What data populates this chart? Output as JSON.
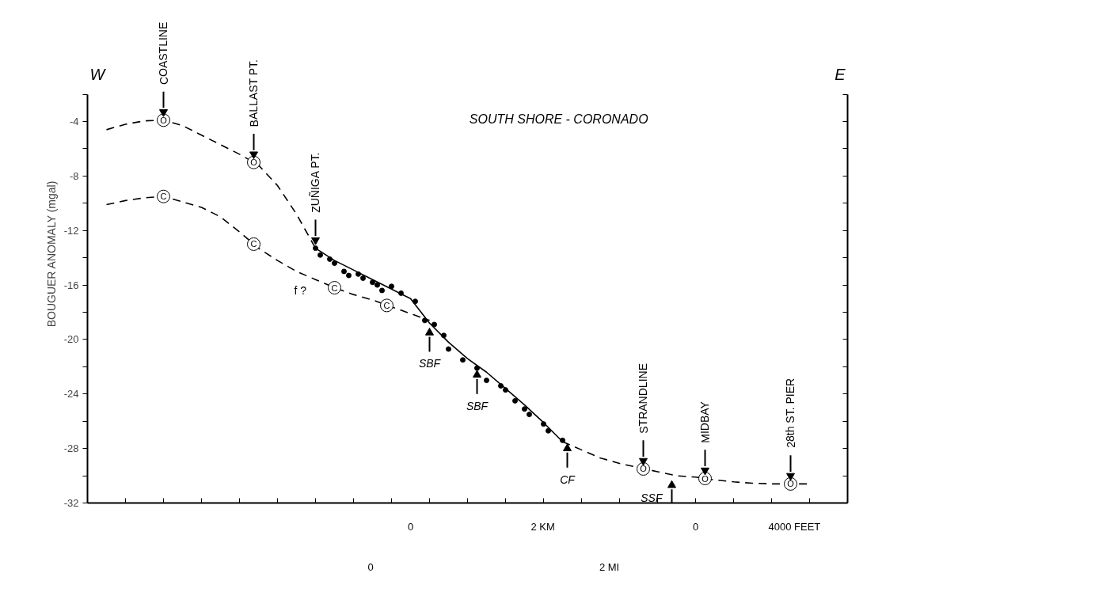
{
  "chart_data": {
    "type": "line",
    "title": "SOUTH SHORE - CORONADO",
    "ylabel": "BOUGUER ANOMALY (mgal)",
    "categories": [
      null,
      null,
      null,
      null,
      null,
      null,
      null,
      null,
      null,
      null,
      null,
      null,
      null,
      null,
      null,
      null,
      null,
      null,
      null,
      null,
      null,
      null,
      null,
      null,
      null,
      null,
      null,
      null,
      null,
      null,
      null,
      null,
      null,
      null,
      null,
      null,
      null,
      null,
      null,
      null,
      null,
      null,
      null,
      null,
      null,
      null,
      null,
      null,
      null,
      null,
      null,
      null,
      null,
      null,
      null,
      null,
      null,
      null,
      null,
      null,
      null,
      null,
      null,
      null,
      null,
      null,
      null,
      null,
      null,
      null,
      null,
      null,
      null,
      null,
      null,
      null,
      null,
      null,
      null,
      null,
      null,
      null,
      null,
      null,
      null,
      null,
      null,
      null,
      null,
      null,
      null,
      null,
      null,
      null,
      null,
      null,
      null,
      null,
      null,
      null,
      null,
      null,
      null,
      null,
      null,
      null,
      null,
      null,
      null,
      null,
      null,
      null,
      null,
      null,
      null,
      null,
      null,
      null,
      null,
      null,
      null,
      null,
      null,
      null,
      null,
      null,
      null,
      null,
      null,
      null,
      null,
      null,
      null,
      null,
      null,
      null,
      null,
      null,
      null,
      null,
      null,
      null,
      null,
      null,
      null,
      null,
      null,
      null,
      null,
      null,
      null,
      null,
      null,
      null,
      null,
      null,
      null,
      null,
      null,
      null,
      null
    ],
    "ylim": [
      -32,
      -2
    ],
    "yticks": [
      -32,
      {
        "value": -30,
        "label": null
      },
      -28,
      {
        "value": -26,
        "label": null
      },
      -24,
      {
        "value": -22,
        "label": null
      },
      -20,
      {
        "value": -18,
        "label": null
      },
      -16,
      {
        "value": -14,
        "label": null
      },
      -12,
      {
        "value": -10,
        "label": null
      },
      -8,
      {
        "value": -6,
        "label": null
      },
      -4,
      {
        "value": -2,
        "label": null
      }
    ],
    "tick_labels": "y",
    "series": [
      {
        "line_style": "dashed",
        "color": "#000000",
        "values": [
          null,
          null,
          null,
          null,
          -4.6,
          null,
          null,
          null,
          -4.2,
          null,
          null,
          null,
          -3.95,
          null,
          null,
          null,
          -3.9,
          null,
          null,
          null,
          -4.3,
          null,
          null,
          null,
          -5.0,
          null,
          null,
          null,
          -5.7,
          null,
          null,
          null,
          -6.4,
          null,
          null,
          null,
          -7.2,
          null,
          null,
          null,
          -8.7,
          null,
          null,
          null,
          -10.8,
          null,
          null,
          null,
          -13.3,
          null,
          null,
          null,
          null,
          null,
          null,
          null,
          null,
          null,
          null,
          null,
          null,
          null,
          null,
          null,
          null,
          null,
          null,
          null,
          null,
          null,
          null,
          null,
          null,
          null,
          null,
          null,
          null,
          null,
          null,
          null,
          null,
          null,
          null,
          null,
          null,
          null,
          null,
          null,
          null,
          null,
          null,
          null,
          null,
          null,
          null,
          null,
          null,
          null,
          null,
          null,
          null,
          null,
          null,
          null,
          null,
          null,
          null,
          null,
          null,
          null,
          null,
          null,
          null,
          null,
          null,
          null,
          null,
          null,
          null,
          null,
          null,
          null,
          null,
          null,
          null,
          null,
          null,
          null,
          null,
          null,
          null,
          null,
          null,
          null,
          null,
          null,
          null,
          null,
          null,
          null,
          null,
          null,
          null,
          null,
          null,
          null,
          null,
          null,
          null,
          null,
          null,
          null,
          null,
          null,
          null,
          null,
          null,
          null,
          null,
          null,
          null
        ]
      },
      {
        "line_style": "solid",
        "color": "#000000",
        "values": [
          null,
          null,
          null,
          null,
          null,
          null,
          null,
          null,
          null,
          null,
          null,
          null,
          null,
          null,
          null,
          null,
          null,
          null,
          null,
          null,
          null,
          null,
          null,
          null,
          null,
          null,
          null,
          null,
          null,
          null,
          null,
          null,
          null,
          null,
          null,
          null,
          null,
          null,
          null,
          null,
          null,
          null,
          null,
          null,
          null,
          null,
          null,
          null,
          -13.3,
          null,
          null,
          null,
          -14.2,
          null,
          null,
          null,
          -14.9,
          null,
          null,
          null,
          -15.6,
          null,
          null,
          null,
          -16.3,
          null,
          null,
          null,
          -17.0,
          null,
          null,
          null,
          -18.8,
          null,
          null,
          null,
          -20.2,
          null,
          null,
          null,
          -21.4,
          null,
          null,
          null,
          -22.4,
          null,
          null,
          null,
          -23.6,
          null,
          null,
          null,
          -24.8,
          null,
          null,
          null,
          -26.1,
          null,
          null,
          null,
          -27.5,
          null,
          null,
          null,
          null,
          null,
          null,
          null,
          null,
          null,
          null,
          null,
          null,
          null,
          null,
          null,
          null,
          null,
          null,
          null,
          null,
          null,
          null,
          null,
          null,
          null,
          null,
          null,
          null,
          null,
          null,
          null,
          null,
          null,
          null,
          null,
          null,
          null,
          null,
          null,
          null,
          null,
          null,
          null,
          null,
          null,
          null,
          null,
          null,
          null,
          null,
          null,
          null,
          null,
          null,
          null,
          null,
          null,
          null,
          null,
          null
        ]
      },
      {
        "line_style": "dashed",
        "color": "#000000",
        "values": [
          null,
          null,
          null,
          null,
          null,
          null,
          null,
          null,
          null,
          null,
          null,
          null,
          null,
          null,
          null,
          null,
          null,
          null,
          null,
          null,
          null,
          null,
          null,
          null,
          null,
          null,
          null,
          null,
          null,
          null,
          null,
          null,
          null,
          null,
          null,
          null,
          null,
          null,
          null,
          null,
          null,
          null,
          null,
          null,
          null,
          null,
          null,
          null,
          null,
          null,
          null,
          null,
          null,
          null,
          null,
          null,
          null,
          null,
          null,
          null,
          null,
          null,
          null,
          null,
          null,
          null,
          null,
          null,
          null,
          null,
          null,
          null,
          null,
          null,
          null,
          null,
          null,
          null,
          null,
          null,
          null,
          null,
          null,
          null,
          null,
          null,
          null,
          null,
          null,
          null,
          null,
          null,
          null,
          null,
          null,
          null,
          null,
          null,
          null,
          null,
          -27.5,
          null,
          null,
          null,
          -28.1,
          null,
          null,
          null,
          -28.7,
          null,
          null,
          null,
          -29.1,
          null,
          null,
          null,
          -29.4,
          null,
          null,
          null,
          -29.7,
          null,
          null,
          null,
          -30.0,
          null,
          null,
          null,
          -30.1,
          null,
          null,
          null,
          -30.3,
          null,
          null,
          null,
          -30.45,
          null,
          null,
          null,
          -30.55,
          null,
          null,
          null,
          -30.6,
          null,
          null,
          null,
          -30.6,
          null,
          null,
          null,
          -30.6,
          null,
          null,
          null,
          null,
          null,
          null,
          null,
          null
        ]
      },
      {
        "line_style": "dashed",
        "color": "#000000",
        "values": [
          null,
          null,
          null,
          null,
          -10.1,
          null,
          null,
          null,
          -9.8,
          null,
          null,
          null,
          -9.6,
          null,
          null,
          null,
          -9.5,
          null,
          null,
          null,
          -9.9,
          null,
          null,
          null,
          -10.3,
          null,
          null,
          null,
          -11.0,
          null,
          null,
          null,
          -12.1,
          null,
          null,
          null,
          -13.3,
          null,
          null,
          null,
          -14.2,
          null,
          null,
          null,
          -15.0,
          null,
          null,
          null,
          -15.6,
          null,
          null,
          null,
          -16.2,
          null,
          null,
          null,
          -16.7,
          null,
          null,
          null,
          -17.1,
          null,
          null,
          null,
          -17.6,
          null,
          null,
          null,
          -18.1,
          null,
          null,
          null,
          -18.6,
          null,
          null,
          null,
          null,
          null,
          null,
          null,
          null,
          null,
          null,
          null,
          null,
          null,
          null,
          null,
          null,
          null,
          null,
          null,
          null,
          null,
          null,
          null,
          null,
          null,
          null,
          null,
          null,
          null,
          null,
          null,
          null,
          null,
          null,
          null,
          null,
          null,
          null,
          null,
          null,
          null,
          null,
          null,
          null,
          null,
          null,
          null,
          null,
          null,
          null,
          null,
          null,
          null,
          null,
          null,
          null,
          null,
          null,
          null,
          null,
          null,
          null,
          null,
          null,
          null,
          null,
          null,
          null,
          null,
          null,
          null,
          null,
          null,
          null,
          null,
          null,
          null,
          null,
          null,
          null,
          null,
          null,
          null,
          null,
          null,
          null,
          null,
          null
        ]
      },
      {
        "type": "scatter",
        "marker": "circle",
        "color": "#000000",
        "values": [
          null,
          null,
          null,
          null,
          null,
          null,
          null,
          null,
          null,
          null,
          null,
          null,
          null,
          null,
          null,
          null,
          null,
          null,
          null,
          null,
          null,
          null,
          null,
          null,
          null,
          null,
          null,
          null,
          null,
          null,
          null,
          null,
          null,
          null,
          null,
          null,
          null,
          null,
          null,
          null,
          null,
          null,
          null,
          null,
          null,
          null,
          null,
          null,
          -13.3,
          -13.8,
          null,
          -14.1,
          -14.4,
          null,
          -15.0,
          -15.3,
          null,
          -15.2,
          -15.5,
          null,
          -15.8,
          -16.0,
          -16.4,
          null,
          -16.1,
          null,
          -16.6,
          null,
          null,
          -17.2,
          null,
          -18.6,
          null,
          -18.9,
          null,
          -19.7,
          -20.7,
          null,
          null,
          -21.5,
          null,
          null,
          -22.1,
          null,
          -23.0,
          null,
          null,
          -23.4,
          -23.7,
          null,
          -24.5,
          null,
          -25.1,
          -25.5,
          null,
          null,
          -26.2,
          -26.7,
          null,
          null,
          -27.4,
          null,
          null,
          null,
          null,
          null,
          null,
          null,
          null,
          null,
          null,
          null,
          null,
          null,
          null,
          null,
          null,
          null,
          null,
          null,
          null,
          null,
          null,
          null,
          null,
          null,
          null,
          null,
          null,
          null,
          null,
          null,
          null,
          null,
          null,
          null,
          null,
          null,
          null,
          null,
          null,
          null,
          null,
          null,
          null,
          null,
          null,
          null,
          null,
          null,
          null,
          null,
          null,
          null,
          null,
          null,
          null,
          null,
          null,
          null,
          null
        ]
      },
      {
        "type": "scatter",
        "marker": "circle",
        "color": "#000000",
        "values": [
          null,
          null,
          null,
          null,
          null,
          null,
          null,
          null,
          null,
          null,
          null,
          null,
          null,
          null,
          null,
          null,
          -3.9,
          null,
          null,
          null,
          null,
          null,
          null,
          null,
          null,
          null,
          null,
          null,
          null,
          null,
          null,
          null,
          null,
          null,
          null,
          -7.0,
          null,
          null,
          null,
          null,
          null,
          null,
          null,
          null,
          null,
          null,
          null,
          null,
          null,
          null,
          null,
          null,
          null,
          null,
          null,
          null,
          null,
          null,
          null,
          null,
          null,
          null,
          null,
          null,
          null,
          null,
          null,
          null,
          null,
          null,
          null,
          null,
          null,
          null,
          null,
          null,
          null,
          null,
          null,
          null,
          null,
          null,
          null,
          null,
          null,
          null,
          null,
          null,
          null,
          null,
          null,
          null,
          null,
          null,
          null,
          null,
          null,
          null,
          null,
          null,
          null,
          null,
          null,
          null,
          null,
          null,
          null,
          null,
          null,
          null,
          null,
          null,
          null,
          null,
          null,
          null,
          null,
          -29.5,
          null,
          null,
          null,
          null,
          null,
          null,
          null,
          null,
          null,
          null,
          null,
          null,
          -30.2,
          null,
          null,
          null,
          null,
          null,
          null,
          null,
          null,
          null,
          null,
          null,
          null,
          null,
          null,
          null,
          null,
          null,
          -30.6,
          null,
          null,
          null,
          null,
          null,
          null,
          null,
          null,
          null,
          null,
          null,
          null
        ],
        "value_labels": [
          null,
          null,
          null,
          null,
          null,
          null,
          null,
          null,
          null,
          null,
          null,
          null,
          null,
          null,
          null,
          null,
          "O",
          null,
          null,
          null,
          null,
          null,
          null,
          null,
          null,
          null,
          null,
          null,
          null,
          null,
          null,
          null,
          null,
          null,
          null,
          "O",
          null,
          null,
          null,
          null,
          null,
          null,
          null,
          null,
          null,
          null,
          null,
          null,
          null,
          null,
          null,
          null,
          null,
          null,
          null,
          null,
          null,
          null,
          null,
          null,
          null,
          null,
          null,
          null,
          null,
          null,
          null,
          null,
          null,
          null,
          null,
          null,
          null,
          null,
          null,
          null,
          null,
          null,
          null,
          null,
          null,
          null,
          null,
          null,
          null,
          null,
          null,
          null,
          null,
          null,
          null,
          null,
          null,
          null,
          null,
          null,
          null,
          null,
          null,
          null,
          null,
          null,
          null,
          null,
          null,
          null,
          null,
          null,
          null,
          null,
          null,
          null,
          null,
          null,
          null,
          null,
          null,
          "O",
          null,
          null,
          null,
          null,
          null,
          null,
          null,
          null,
          null,
          null,
          null,
          null,
          "O",
          null,
          null,
          null,
          null,
          null,
          null,
          null,
          null,
          null,
          null,
          null,
          null,
          null,
          null,
          null,
          null,
          null,
          "O",
          null,
          null,
          null,
          null,
          null,
          null,
          null,
          null,
          null,
          null,
          null,
          null
        ]
      },
      {
        "type": "scatter",
        "marker": "circle",
        "color": "#000000",
        "values": [
          null,
          null,
          null,
          null,
          null,
          null,
          null,
          null,
          null,
          null,
          null,
          null,
          null,
          null,
          null,
          null,
          -9.5,
          null,
          null,
          null,
          null,
          null,
          null,
          null,
          null,
          null,
          null,
          null,
          null,
          null,
          null,
          null,
          null,
          null,
          null,
          -13.0,
          null,
          null,
          null,
          null,
          null,
          null,
          null,
          null,
          null,
          null,
          null,
          null,
          null,
          null,
          null,
          null,
          -16.2,
          null,
          null,
          null,
          null,
          null,
          null,
          null,
          null,
          null,
          null,
          -17.5,
          null,
          null,
          null,
          null,
          null,
          null,
          null,
          null,
          null,
          null,
          null,
          null,
          null,
          null,
          null,
          null,
          null,
          null,
          null,
          null,
          null,
          null,
          null,
          null,
          null,
          null,
          null,
          null,
          null,
          null,
          null,
          null,
          null,
          null,
          null,
          null,
          null,
          null,
          null,
          null,
          null,
          null,
          null,
          null,
          null,
          null,
          null,
          null,
          null,
          null,
          null,
          null,
          null,
          null,
          null,
          null,
          null,
          null,
          null,
          null,
          null,
          null,
          null,
          null,
          null,
          null,
          null,
          null,
          null,
          null,
          null,
          null,
          null,
          null,
          null,
          null,
          null,
          null,
          null,
          null,
          null,
          null,
          null,
          null,
          null,
          null,
          null,
          null,
          null,
          null,
          null,
          null,
          null,
          null,
          null,
          null,
          null
        ],
        "value_labels": [
          null,
          null,
          null,
          null,
          null,
          null,
          null,
          null,
          null,
          null,
          null,
          null,
          null,
          null,
          null,
          null,
          "C",
          null,
          null,
          null,
          null,
          null,
          null,
          null,
          null,
          null,
          null,
          null,
          null,
          null,
          null,
          null,
          null,
          null,
          null,
          "C",
          null,
          null,
          null,
          null,
          null,
          null,
          null,
          null,
          null,
          null,
          null,
          null,
          null,
          null,
          null,
          null,
          "C",
          null,
          null,
          null,
          null,
          null,
          null,
          null,
          null,
          null,
          null,
          "C",
          null,
          null,
          null,
          null,
          null,
          null,
          null,
          null,
          null,
          null,
          null,
          null,
          null,
          null,
          null,
          null,
          null,
          null,
          null,
          null,
          null,
          null,
          null,
          null,
          null,
          null,
          null,
          null,
          null,
          null,
          null,
          null,
          null,
          null,
          null,
          null,
          null,
          null,
          null,
          null,
          null,
          null,
          null,
          null,
          null,
          null,
          null,
          null,
          null,
          null,
          null,
          null,
          null,
          null,
          null,
          null,
          null,
          null,
          null,
          null,
          null,
          null,
          null,
          null,
          null,
          null,
          null,
          null,
          null,
          null,
          null,
          null,
          null,
          null,
          null,
          null,
          null,
          null,
          null,
          null,
          null,
          null,
          null,
          null,
          null,
          null,
          null,
          null,
          null,
          null,
          null,
          null,
          null,
          null,
          null,
          null,
          null
        ]
      },
      {
        "type": "scatter",
        "marker": "triangle",
        "color": "#000000",
        "values": [
          null,
          null,
          null,
          null,
          null,
          null,
          null,
          null,
          null,
          null,
          null,
          null,
          null,
          null,
          null,
          null,
          -3.3,
          null,
          null,
          null,
          null,
          null,
          null,
          null,
          null,
          null,
          null,
          null,
          null,
          null,
          null,
          null,
          null,
          null,
          null,
          -6.4,
          null,
          null,
          null,
          null,
          null,
          null,
          null,
          null,
          null,
          null,
          null,
          null,
          -12.7,
          null,
          null,
          null,
          null,
          null,
          null,
          null,
          null,
          null,
          null,
          null,
          null,
          null,
          null,
          null,
          null,
          null,
          null,
          null,
          null,
          null,
          null,
          null,
          -19.5,
          null,
          null,
          null,
          null,
          null,
          null,
          null,
          null,
          null,
          -22.6,
          null,
          null,
          null,
          null,
          null,
          null,
          null,
          null,
          null,
          null,
          null,
          null,
          null,
          null,
          null,
          null,
          null,
          null,
          -28.0,
          null,
          null,
          null,
          null,
          null,
          null,
          null,
          null,
          null,
          null,
          null,
          null,
          null,
          null,
          null,
          -28.9,
          null,
          null,
          null,
          null,
          null,
          -30.7,
          null,
          null,
          null,
          null,
          null,
          null,
          -29.6,
          null,
          null,
          null,
          null,
          null,
          null,
          null,
          null,
          null,
          null,
          null,
          null,
          null,
          null,
          null,
          null,
          null,
          -30.0,
          null,
          null,
          null,
          null,
          null,
          null,
          null,
          null,
          null,
          null,
          null,
          null
        ],
        "value_labels": [
          null,
          null,
          null,
          null,
          null,
          null,
          null,
          null,
          null,
          null,
          null,
          null,
          null,
          null,
          null,
          null,
          "COASTLINE",
          null,
          null,
          null,
          null,
          null,
          null,
          null,
          null,
          null,
          null,
          null,
          null,
          null,
          null,
          null,
          null,
          null,
          null,
          "BALLAST PT.",
          null,
          null,
          null,
          null,
          null,
          null,
          null,
          null,
          null,
          null,
          null,
          null,
          "ZUÑIGA PT.",
          null,
          null,
          null,
          null,
          null,
          null,
          null,
          null,
          null,
          null,
          null,
          null,
          null,
          null,
          null,
          null,
          null,
          null,
          null,
          null,
          null,
          null,
          null,
          "SBF",
          null,
          null,
          null,
          null,
          null,
          null,
          null,
          null,
          null,
          "SBF",
          null,
          null,
          null,
          null,
          null,
          null,
          null,
          null,
          null,
          null,
          null,
          null,
          null,
          null,
          null,
          null,
          null,
          null,
          "CF",
          null,
          null,
          null,
          null,
          null,
          null,
          null,
          null,
          null,
          null,
          null,
          null,
          null,
          null,
          null,
          "STRANDLINE",
          null,
          null,
          null,
          null,
          null,
          "SSF",
          null,
          null,
          null,
          null,
          null,
          null,
          "MIDBAY",
          null,
          null,
          null,
          null,
          null,
          null,
          null,
          null,
          null,
          null,
          null,
          null,
          null,
          null,
          null,
          null,
          null,
          null,
          null,
          null,
          null,
          null,
          null,
          null,
          null,
          null,
          null,
          null,
          null,
          null
        ]
      }
    ],
    "annotations": [
      "W",
      "E",
      "f ?",
      "28th ST. PIER",
      "0",
      "2 KM",
      "0",
      "4000 FEET",
      "0",
      "2 MI"
    ]
  }
}
